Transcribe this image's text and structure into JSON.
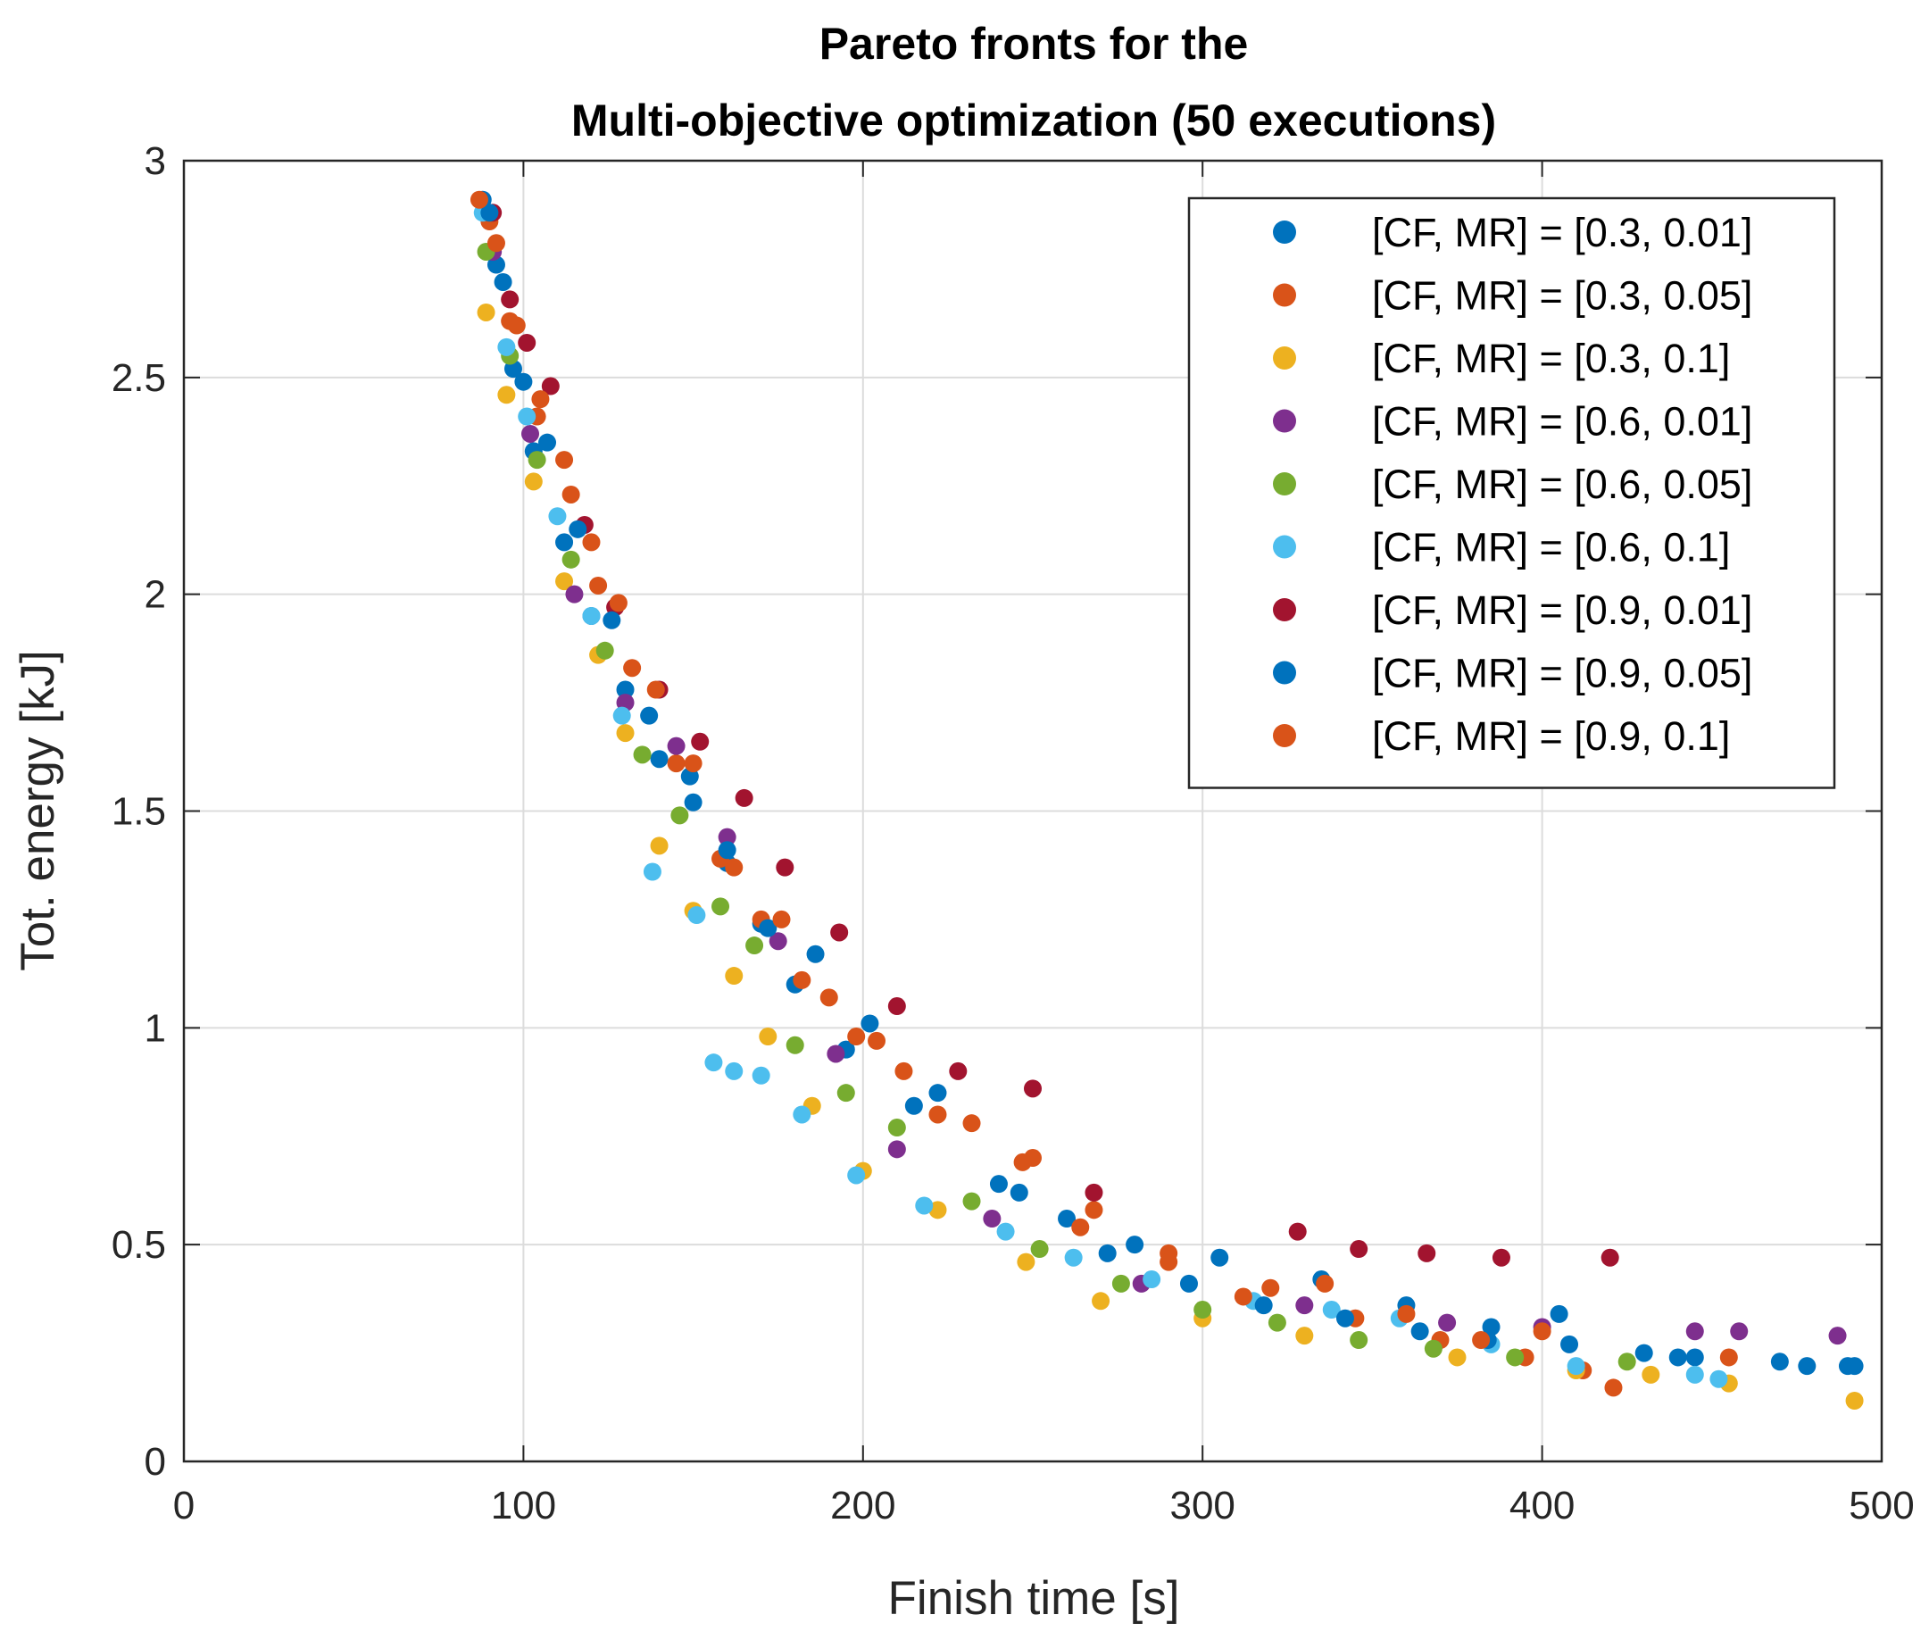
{
  "chart_data": {
    "type": "scatter",
    "title": [
      "Pareto fronts for the",
      "Multi-objective optimization (50 executions)"
    ],
    "xlabel": "Finish time [s]",
    "ylabel": "Tot. energy [kJ]",
    "xlim": [
      0,
      500
    ],
    "ylim": [
      0,
      3
    ],
    "xticks": [
      0,
      100,
      200,
      300,
      400,
      500
    ],
    "xtick_labels": [
      "0",
      "100",
      "200",
      "300",
      "400",
      "500"
    ],
    "yticks": [
      0,
      0.5,
      1,
      1.5,
      2,
      2.5,
      3
    ],
    "ytick_labels": [
      "0",
      "0.5",
      "1",
      "1.5",
      "2",
      "2.5",
      "3"
    ],
    "grid": true,
    "legend_position": "top-right",
    "series": [
      {
        "name": "[CF, MR] = [0.3, 0.01]",
        "color": "#0072BD",
        "x": [
          88,
          92,
          97,
          103,
          112,
          120,
          130,
          140,
          150,
          160,
          170,
          180,
          195,
          215,
          240,
          260,
          280,
          305,
          335,
          360,
          385,
          405,
          430,
          445,
          470,
          490
        ],
        "y": [
          2.91,
          2.76,
          2.52,
          2.33,
          2.12,
          1.95,
          1.78,
          1.62,
          1.52,
          1.38,
          1.24,
          1.1,
          0.95,
          0.82,
          0.64,
          0.56,
          0.5,
          0.47,
          0.42,
          0.36,
          0.31,
          0.34,
          0.25,
          0.24,
          0.23,
          0.22
        ]
      },
      {
        "name": "[CF, MR] = [0.3, 0.05]",
        "color": "#D95319",
        "x": [
          90,
          96,
          104,
          114,
          122,
          132,
          145,
          158,
          170,
          182,
          198,
          212,
          232,
          250,
          268,
          290,
          320,
          345,
          370,
          395,
          412,
          455
        ],
        "y": [
          2.86,
          2.63,
          2.41,
          2.23,
          2.02,
          1.83,
          1.61,
          1.39,
          1.25,
          1.11,
          0.98,
          0.9,
          0.78,
          0.7,
          0.58,
          0.48,
          0.4,
          0.33,
          0.28,
          0.24,
          0.21,
          0.24
        ]
      },
      {
        "name": "[CF, MR] = [0.3, 0.1]",
        "color": "#EDB120",
        "x": [
          89,
          95,
          103,
          112,
          122,
          130,
          140,
          150,
          162,
          172,
          185,
          200,
          222,
          248,
          270,
          300,
          330,
          375,
          410,
          432,
          455,
          492
        ],
        "y": [
          2.65,
          2.46,
          2.26,
          2.03,
          1.86,
          1.68,
          1.42,
          1.27,
          1.12,
          0.98,
          0.82,
          0.67,
          0.58,
          0.46,
          0.37,
          0.33,
          0.29,
          0.24,
          0.21,
          0.2,
          0.18,
          0.14
        ]
      },
      {
        "name": "[CF, MR] = [0.6, 0.01]",
        "color": "#7E2F8E",
        "x": [
          91,
          102,
          115,
          130,
          145,
          160,
          175,
          192,
          210,
          238,
          282,
          330,
          372,
          400,
          445,
          458,
          487
        ],
        "y": [
          2.79,
          2.37,
          2.0,
          1.75,
          1.65,
          1.44,
          1.2,
          0.94,
          0.72,
          0.56,
          0.41,
          0.36,
          0.32,
          0.31,
          0.3,
          0.3,
          0.29
        ]
      },
      {
        "name": "[CF, MR] = [0.6, 0.05]",
        "color": "#77AC30",
        "x": [
          89,
          96,
          104,
          114,
          124,
          135,
          146,
          158,
          168,
          180,
          195,
          210,
          232,
          252,
          276,
          300,
          322,
          346,
          368,
          392,
          425
        ],
        "y": [
          2.79,
          2.55,
          2.31,
          2.08,
          1.87,
          1.63,
          1.49,
          1.28,
          1.19,
          0.96,
          0.85,
          0.77,
          0.6,
          0.49,
          0.41,
          0.35,
          0.32,
          0.28,
          0.26,
          0.24,
          0.23
        ]
      },
      {
        "name": "[CF, MR] = [0.6, 0.1]",
        "color": "#4DBEEE",
        "x": [
          88,
          95,
          101,
          110,
          120,
          129,
          138,
          151,
          156,
          162,
          170,
          182,
          198,
          218,
          242,
          262,
          285,
          315,
          338,
          358,
          385,
          410,
          445,
          452
        ],
        "y": [
          2.88,
          2.57,
          2.41,
          2.18,
          1.95,
          1.72,
          1.36,
          1.26,
          0.92,
          0.9,
          0.89,
          0.8,
          0.66,
          0.59,
          0.53,
          0.47,
          0.42,
          0.37,
          0.35,
          0.33,
          0.27,
          0.22,
          0.2,
          0.19
        ]
      },
      {
        "name": "[CF, MR] = [0.9, 0.01]",
        "color": "#A2142F",
        "x": [
          91,
          96,
          101,
          108,
          118,
          127,
          140,
          152,
          165,
          177,
          193,
          210,
          228,
          250,
          268,
          328,
          346,
          366,
          388,
          420
        ],
        "y": [
          2.88,
          2.68,
          2.58,
          2.48,
          2.16,
          1.97,
          1.78,
          1.66,
          1.53,
          1.37,
          1.22,
          1.05,
          0.9,
          0.86,
          0.62,
          0.53,
          0.49,
          0.48,
          0.47,
          0.47
        ]
      },
      {
        "name": "[CF, MR] = [0.9, 0.05]",
        "color": "#0072BD",
        "x": [
          90,
          94,
          100,
          107,
          116,
          126,
          137,
          149,
          160,
          172,
          186,
          202,
          222,
          246,
          272,
          296,
          318,
          342,
          364,
          384,
          408,
          440,
          478,
          492
        ],
        "y": [
          2.88,
          2.72,
          2.49,
          2.35,
          2.15,
          1.94,
          1.72,
          1.58,
          1.41,
          1.23,
          1.17,
          1.01,
          0.85,
          0.62,
          0.48,
          0.41,
          0.36,
          0.33,
          0.3,
          0.28,
          0.27,
          0.24,
          0.22,
          0.22
        ]
      },
      {
        "name": "[CF, MR] = [0.9, 0.1]",
        "color": "#D95319",
        "x": [
          87,
          92,
          98,
          105,
          112,
          120,
          128,
          139,
          150,
          162,
          176,
          190,
          204,
          222,
          247,
          264,
          290,
          312,
          336,
          360,
          382,
          400,
          421
        ],
        "y": [
          2.91,
          2.81,
          2.62,
          2.45,
          2.31,
          2.12,
          1.98,
          1.78,
          1.61,
          1.37,
          1.25,
          1.07,
          0.97,
          0.8,
          0.69,
          0.54,
          0.46,
          0.38,
          0.41,
          0.34,
          0.28,
          0.3,
          0.17
        ]
      }
    ]
  }
}
